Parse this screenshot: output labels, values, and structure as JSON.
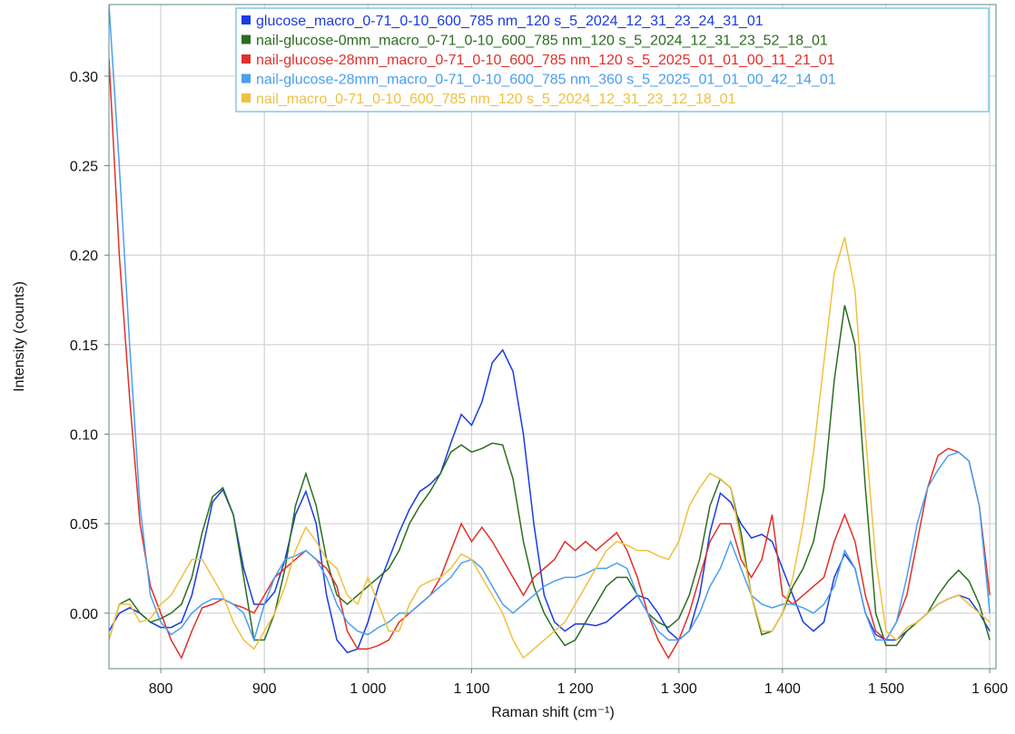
{
  "chart_data": {
    "type": "line",
    "x_label": "Raman shift (cm⁻¹)",
    "y_label": "Intensity (counts)",
    "xlim": [
      750,
      1606
    ],
    "ylim": [
      -0.031,
      0.34
    ],
    "xticks": [
      800,
      900,
      {
        "value": 1000,
        "label": "1 000"
      },
      {
        "value": 1100,
        "label": "1 100"
      },
      {
        "value": 1200,
        "label": "1 200"
      },
      {
        "value": 1300,
        "label": "1 300"
      },
      {
        "value": 1400,
        "label": "1 400"
      },
      {
        "value": 1500,
        "label": "1 500"
      },
      {
        "value": 1600,
        "label": "1 600"
      }
    ],
    "yticks": [
      {
        "value": 0,
        "label": "0.00"
      },
      {
        "value": 0.05,
        "label": "0.05"
      },
      {
        "value": 0.1,
        "label": "0.10"
      },
      {
        "value": 0.15,
        "label": "0.15"
      },
      {
        "value": 0.2,
        "label": "0.20"
      },
      {
        "value": 0.25,
        "label": "0.25"
      },
      {
        "value": 0.3,
        "label": "0.30"
      }
    ],
    "grid": true,
    "legend": "top-right",
    "x": [
      750,
      760,
      770,
      780,
      790,
      800,
      810,
      820,
      830,
      840,
      850,
      860,
      870,
      880,
      890,
      900,
      910,
      920,
      930,
      940,
      950,
      960,
      970,
      980,
      990,
      1000,
      1010,
      1020,
      1030,
      1040,
      1050,
      1060,
      1070,
      1080,
      1090,
      1100,
      1110,
      1120,
      1130,
      1140,
      1150,
      1160,
      1170,
      1180,
      1190,
      1200,
      1210,
      1220,
      1230,
      1240,
      1250,
      1260,
      1270,
      1280,
      1290,
      1300,
      1310,
      1320,
      1330,
      1340,
      1350,
      1360,
      1370,
      1380,
      1390,
      1400,
      1410,
      1420,
      1430,
      1440,
      1450,
      1460,
      1470,
      1480,
      1490,
      1500,
      1510,
      1520,
      1530,
      1540,
      1550,
      1560,
      1570,
      1580,
      1590,
      1600
    ],
    "series": [
      {
        "name": "glucose_macro_0-71_0-10_600_785 nm_120 s_5_2024_12_31_23_24_31_01",
        "color": "#1a3be0",
        "values": [
          -0.01,
          0.0,
          0.003,
          0.0,
          -0.005,
          -0.008,
          -0.008,
          -0.005,
          0.01,
          0.035,
          0.062,
          0.069,
          0.055,
          0.025,
          0.005,
          0.005,
          0.012,
          0.03,
          0.055,
          0.068,
          0.05,
          0.01,
          -0.015,
          -0.022,
          -0.02,
          -0.005,
          0.015,
          0.03,
          0.045,
          0.058,
          0.068,
          0.072,
          0.078,
          0.095,
          0.111,
          0.105,
          0.118,
          0.14,
          0.147,
          0.135,
          0.1,
          0.05,
          0.01,
          -0.005,
          -0.01,
          -0.006,
          -0.006,
          -0.007,
          -0.005,
          0.0,
          0.005,
          0.01,
          0.008,
          0.0,
          -0.01,
          -0.015,
          -0.01,
          0.01,
          0.045,
          0.067,
          0.062,
          0.05,
          0.042,
          0.044,
          0.04,
          0.025,
          0.01,
          -0.005,
          -0.01,
          -0.005,
          0.02,
          0.033,
          0.025,
          0.0,
          -0.012,
          -0.015,
          -0.015,
          -0.01,
          -0.005,
          0.0,
          0.005,
          0.008,
          0.01,
          0.008,
          0.0,
          -0.01
        ]
      },
      {
        "name": "nail-glucose-0mm_macro_0-71_0-10_600_785 nm_120 s_5_2024_12_31_23_52_18_01",
        "color": "#2a6e1e",
        "values": [
          -0.015,
          0.005,
          0.008,
          0.0,
          -0.005,
          -0.003,
          0.0,
          0.005,
          0.02,
          0.045,
          0.065,
          0.07,
          0.055,
          0.02,
          -0.015,
          -0.015,
          0.0,
          0.025,
          0.06,
          0.078,
          0.06,
          0.03,
          0.01,
          0.005,
          0.01,
          0.015,
          0.02,
          0.025,
          0.035,
          0.05,
          0.06,
          0.068,
          0.078,
          0.09,
          0.094,
          0.09,
          0.092,
          0.095,
          0.094,
          0.075,
          0.04,
          0.015,
          0.0,
          -0.01,
          -0.018,
          -0.015,
          -0.005,
          0.005,
          0.015,
          0.02,
          0.02,
          0.01,
          0.0,
          -0.005,
          -0.008,
          -0.003,
          0.01,
          0.03,
          0.06,
          0.075,
          0.07,
          0.045,
          0.01,
          -0.012,
          -0.01,
          0.0,
          0.015,
          0.025,
          0.04,
          0.07,
          0.13,
          0.172,
          0.15,
          0.07,
          0.0,
          -0.018,
          -0.018,
          -0.01,
          -0.005,
          0.0,
          0.01,
          0.018,
          0.024,
          0.018,
          0.005,
          -0.015
        ]
      },
      {
        "name": "nail-glucose-28mm_macro_0-71_0-10_600_785 nm_120 s_5_2025_01_01_00_11_21_01",
        "color": "#e0302a",
        "values": [
          0.31,
          0.2,
          0.12,
          0.05,
          0.015,
          0.0,
          -0.015,
          -0.025,
          -0.01,
          0.003,
          0.005,
          0.008,
          0.005,
          0.003,
          0.0,
          0.01,
          0.02,
          0.025,
          0.03,
          0.035,
          0.03,
          0.025,
          0.015,
          -0.01,
          -0.02,
          -0.02,
          -0.018,
          -0.015,
          -0.005,
          0.0,
          0.005,
          0.01,
          0.02,
          0.035,
          0.05,
          0.04,
          0.048,
          0.04,
          0.03,
          0.02,
          0.01,
          0.02,
          0.025,
          0.03,
          0.04,
          0.035,
          0.04,
          0.035,
          0.04,
          0.045,
          0.035,
          0.02,
          0.0,
          -0.015,
          -0.025,
          -0.015,
          0.0,
          0.02,
          0.04,
          0.05,
          0.05,
          0.03,
          0.02,
          0.03,
          0.055,
          0.01,
          0.005,
          0.01,
          0.015,
          0.02,
          0.04,
          0.055,
          0.04,
          0.01,
          -0.01,
          -0.015,
          -0.005,
          0.01,
          0.04,
          0.07,
          0.088,
          0.092,
          0.09,
          0.085,
          0.06,
          0.01
        ]
      },
      {
        "name": "nail-glucose-28mm_macro_0-71_0-10_600_785 nm_360 s_5_2025_01_01_00_42_14_01",
        "color": "#4a9ef0",
        "values": [
          0.34,
          0.25,
          0.15,
          0.06,
          0.01,
          -0.005,
          -0.012,
          -0.008,
          0.0,
          0.005,
          0.008,
          0.008,
          0.005,
          0.0,
          -0.015,
          0.005,
          0.02,
          0.03,
          0.032,
          0.035,
          0.03,
          0.02,
          0.005,
          -0.005,
          -0.01,
          -0.012,
          -0.008,
          -0.005,
          0.0,
          0.0,
          0.005,
          0.01,
          0.015,
          0.02,
          0.028,
          0.03,
          0.025,
          0.015,
          0.005,
          0.0,
          0.005,
          0.01,
          0.015,
          0.018,
          0.02,
          0.02,
          0.022,
          0.025,
          0.025,
          0.028,
          0.025,
          0.01,
          0.0,
          -0.01,
          -0.015,
          -0.015,
          -0.01,
          0.0,
          0.015,
          0.025,
          0.04,
          0.025,
          0.01,
          0.005,
          0.003,
          0.005,
          0.005,
          0.003,
          0.0,
          0.005,
          0.015,
          0.035,
          0.025,
          0.0,
          -0.015,
          -0.015,
          -0.005,
          0.02,
          0.05,
          0.07,
          0.08,
          0.088,
          0.09,
          0.085,
          0.06,
          0.0
        ]
      },
      {
        "name": "nail_macro_0-71_0-10_600_785 nm_120 s_5_2024_12_31_23_12_18_01",
        "color": "#f0c040",
        "values": [
          -0.015,
          0.005,
          0.005,
          -0.005,
          -0.003,
          0.005,
          0.01,
          0.02,
          0.03,
          0.03,
          0.02,
          0.01,
          -0.005,
          -0.015,
          -0.02,
          -0.01,
          0.0,
          0.015,
          0.035,
          0.048,
          0.04,
          0.03,
          0.025,
          0.01,
          0.005,
          0.02,
          0.005,
          -0.01,
          -0.01,
          0.005,
          0.015,
          0.018,
          0.02,
          0.025,
          0.033,
          0.03,
          0.02,
          0.01,
          0.0,
          -0.015,
          -0.025,
          -0.02,
          -0.015,
          -0.01,
          -0.005,
          0.005,
          0.015,
          0.025,
          0.035,
          0.04,
          0.038,
          0.035,
          0.035,
          0.032,
          0.03,
          0.04,
          0.06,
          0.07,
          0.078,
          0.075,
          0.07,
          0.04,
          0.01,
          -0.01,
          -0.01,
          0.0,
          0.02,
          0.05,
          0.09,
          0.14,
          0.19,
          0.21,
          0.18,
          0.1,
          0.03,
          -0.01,
          -0.015,
          -0.008,
          -0.005,
          0.0,
          0.005,
          0.008,
          0.01,
          0.005,
          0.0,
          -0.005
        ]
      }
    ]
  }
}
